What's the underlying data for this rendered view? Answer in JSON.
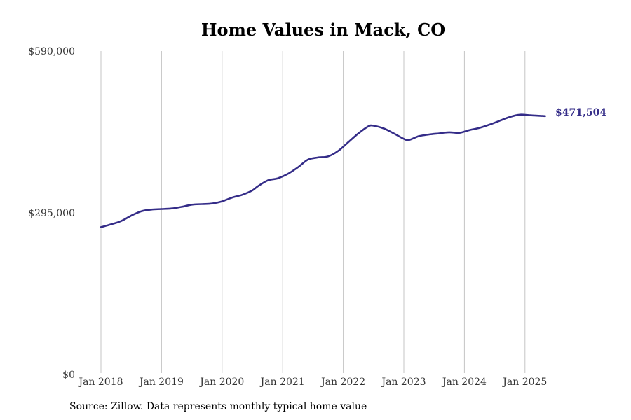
{
  "chart_data": {
    "type": "line",
    "title": "Home Values in Mack, CO",
    "source": "Source: Zillow. Data represents monthly typical home value",
    "xlabel": "",
    "ylabel": "",
    "ylim": [
      0,
      590000
    ],
    "xlim": [
      "2018-01",
      "2025-05"
    ],
    "y_ticks": [
      {
        "value": 0,
        "label": "$0"
      },
      {
        "value": 295000,
        "label": "$295,000"
      },
      {
        "value": 590000,
        "label": "$590,000"
      }
    ],
    "x_ticks": [
      {
        "value": "2018-01",
        "label": "Jan 2018"
      },
      {
        "value": "2019-01",
        "label": "Jan 2019"
      },
      {
        "value": "2020-01",
        "label": "Jan 2020"
      },
      {
        "value": "2021-01",
        "label": "Jan 2021"
      },
      {
        "value": "2022-01",
        "label": "Jan 2022"
      },
      {
        "value": "2023-01",
        "label": "Jan 2023"
      },
      {
        "value": "2024-01",
        "label": "Jan 2024"
      },
      {
        "value": "2025-01",
        "label": "Jan 2025"
      }
    ],
    "grid": "vertical",
    "line_color": "#342c88",
    "end_label": "$471,504",
    "series": [
      {
        "x": [
          "2018-01",
          "2018-03",
          "2018-05",
          "2018-07",
          "2018-09",
          "2018-11",
          "2019-01",
          "2019-03",
          "2019-05",
          "2019-07",
          "2019-09",
          "2019-11",
          "2020-01",
          "2020-03",
          "2020-05",
          "2020-07",
          "2020-08",
          "2020-10",
          "2020-12",
          "2021-02",
          "2021-04",
          "2021-06",
          "2021-08",
          "2021-10",
          "2021-12",
          "2022-02",
          "2022-04",
          "2022-06",
          "2022-07",
          "2022-09",
          "2022-11",
          "2023-01",
          "2023-02",
          "2023-04",
          "2023-06",
          "2023-08",
          "2023-10",
          "2023-12",
          "2024-02",
          "2024-04",
          "2024-06",
          "2024-08",
          "2024-10",
          "2024-12",
          "2025-02",
          "2025-04",
          "2025-05"
        ],
        "values": [
          269000,
          274000,
          280000,
          290000,
          298000,
          301000,
          302000,
          303000,
          306000,
          310000,
          311000,
          312000,
          316000,
          323000,
          328000,
          336000,
          343000,
          354000,
          358000,
          366000,
          378000,
          392000,
          396000,
          398000,
          408000,
          424000,
          440000,
          453000,
          454000,
          449000,
          440000,
          430000,
          428000,
          435000,
          438000,
          440000,
          442000,
          441000,
          446000,
          450000,
          456000,
          463000,
          470000,
          474000,
          473000,
          472000,
          471504
        ]
      }
    ]
  }
}
